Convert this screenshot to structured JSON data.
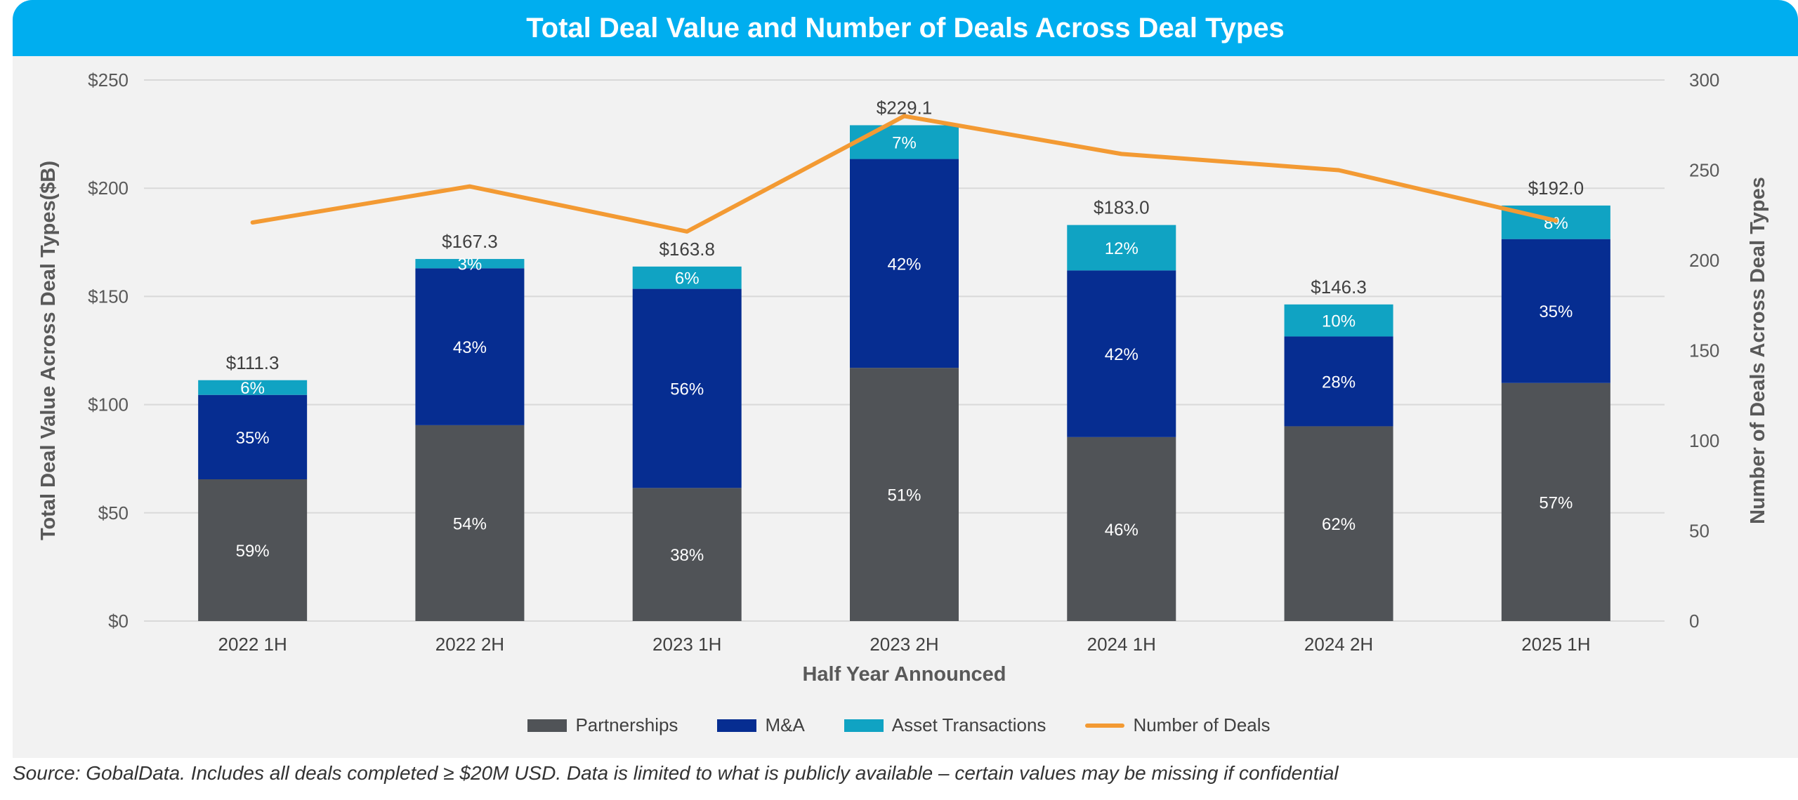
{
  "title": "Total Deal Value and Number of Deals Across Deal Types",
  "source_note": "Source: GobalData. Includes all deals completed ≥ $20M USD. Data is limited to what is publicly available – certain values may be missing if confidential",
  "colors": {
    "title_bar": "#00aeef",
    "partnerships": "#505357",
    "mna": "#062d91",
    "asset": "#10a3c3",
    "deals_line": "#f39a33"
  },
  "chart_data": {
    "type": "bar",
    "stacked": true,
    "xlabel": "Half Year Announced",
    "ylabel": "Total Deal Value Across Deal Types($B)",
    "y2label": "Number of Deals Across Deal Types",
    "ylim": [
      0,
      250
    ],
    "y2lim": [
      0,
      300
    ],
    "y_ticks": [
      "$0",
      "$50",
      "$100",
      "$150",
      "$200",
      "$250"
    ],
    "y_tick_values": [
      0,
      50,
      100,
      150,
      200,
      250
    ],
    "y2_ticks": [
      "0",
      "50",
      "100",
      "150",
      "200",
      "250",
      "300"
    ],
    "y2_tick_values": [
      0,
      50,
      100,
      150,
      200,
      250,
      300
    ],
    "grid": true,
    "legend_position": "bottom",
    "categories": [
      "2022 1H",
      "2022 2H",
      "2023 1H",
      "2023 2H",
      "2024 1H",
      "2024 2H",
      "2025 1H"
    ],
    "totals": [
      111.3,
      167.3,
      163.8,
      229.1,
      183.0,
      146.3,
      192.0
    ],
    "total_labels": [
      "$111.3",
      "$167.3",
      "$163.8",
      "$229.1",
      "$183.0",
      "$146.3",
      "$192.0"
    ],
    "series": [
      {
        "name": "Partnerships",
        "values": [
          65.5,
          90.5,
          61.5,
          117.0,
          85.0,
          90.0,
          110.0
        ],
        "labels": [
          "59%",
          "54%",
          "38%",
          "51%",
          "46%",
          "62%",
          "57%"
        ]
      },
      {
        "name": "M&A",
        "values": [
          39.0,
          72.5,
          92.0,
          96.5,
          77.0,
          41.5,
          66.5
        ],
        "labels": [
          "35%",
          "43%",
          "56%",
          "42%",
          "42%",
          "28%",
          "35%"
        ]
      },
      {
        "name": "Asset Transactions",
        "values": [
          6.8,
          4.3,
          10.3,
          15.6,
          21.0,
          14.8,
          15.5
        ],
        "labels": [
          "6%",
          "3%",
          "6%",
          "7%",
          "12%",
          "10%",
          "8%"
        ]
      }
    ],
    "line_series": {
      "name": "Number of Deals",
      "axis": "secondary",
      "values": [
        221,
        241,
        216,
        280,
        259,
        250,
        222
      ]
    }
  }
}
